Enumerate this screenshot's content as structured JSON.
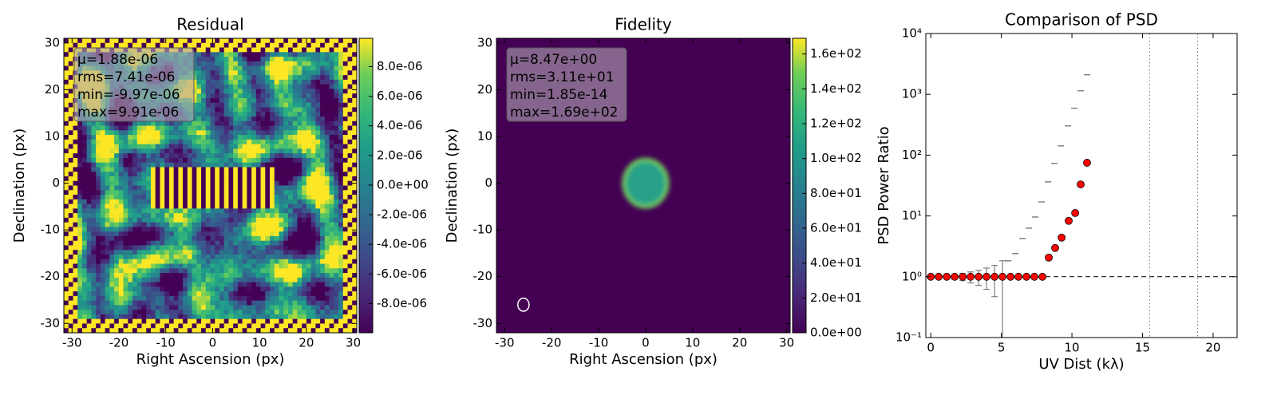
{
  "chart_data": [
    {
      "type": "heatmap",
      "title": "Residual",
      "xlabel": "Right Ascension (px)",
      "ylabel": "Declination (px)",
      "xlim": [
        -31.75,
        30.75
      ],
      "ylim": [
        -32,
        31
      ],
      "xticks": [
        -30,
        -20,
        -10,
        0,
        10,
        20,
        30
      ],
      "yticks": [
        -30,
        -20,
        -10,
        0,
        10,
        20,
        30
      ],
      "clim": [
        -9.97e-06,
        9.91e-06
      ],
      "cticks": [
        {
          "value": -8e-06,
          "label": "-8.0e-06"
        },
        {
          "value": -6e-06,
          "label": "-6.0e-06"
        },
        {
          "value": -4e-06,
          "label": "-4.0e-06"
        },
        {
          "value": -2e-06,
          "label": "-2.0e-06"
        },
        {
          "value": 0,
          "label": "0.0e+00"
        },
        {
          "value": 2e-06,
          "label": "2.0e-06"
        },
        {
          "value": 4e-06,
          "label": "4.0e-06"
        },
        {
          "value": 6e-06,
          "label": "6.0e-06"
        },
        {
          "value": 8e-06,
          "label": "8.0e-06"
        }
      ],
      "stats": [
        "μ=1.88e-06",
        "rms=7.41e-06",
        "min=-9.97e-06",
        "max=9.91e-06"
      ]
    },
    {
      "type": "heatmap",
      "title": "Fidelity",
      "xlabel": "Right Ascension (px)",
      "ylabel": "Declination (px)",
      "xlim": [
        -31.75,
        30.75
      ],
      "ylim": [
        -32,
        31
      ],
      "xticks": [
        -30,
        -20,
        -10,
        0,
        10,
        20,
        30
      ],
      "yticks": [
        -30,
        -20,
        -10,
        0,
        10,
        20,
        30
      ],
      "clim": [
        0,
        169
      ],
      "cticks": [
        {
          "value": 0,
          "label": "0.0e+00"
        },
        {
          "value": 20,
          "label": "2.0e+01"
        },
        {
          "value": 40,
          "label": "4.0e+01"
        },
        {
          "value": 60,
          "label": "6.0e+01"
        },
        {
          "value": 80,
          "label": "8.0e+01"
        },
        {
          "value": 100,
          "label": "1.0e+02"
        },
        {
          "value": 120,
          "label": "1.2e+02"
        },
        {
          "value": 140,
          "label": "1.4e+02"
        },
        {
          "value": 160,
          "label": "1.6e+02"
        }
      ],
      "stats": [
        "μ=8.47e+00",
        "rms=3.11e+01",
        "min=1.85e-14",
        "max=1.69e+02"
      ]
    },
    {
      "type": "scatter",
      "title": "Comparison of PSD",
      "xlabel": "UV Dist (kλ)",
      "ylabel": "PSD Power Ratio",
      "log_y": true,
      "xlim": [
        -0.35,
        21.7
      ],
      "ylim": [
        0.1,
        10000
      ],
      "xticks": [
        0,
        5,
        10,
        15,
        20
      ],
      "yticks": [
        {
          "value": 0.1,
          "label": "10⁻¹"
        },
        {
          "value": 1,
          "label": "10⁰"
        },
        {
          "value": 10,
          "label": "10¹"
        },
        {
          "value": 100,
          "label": "10²"
        },
        {
          "value": 1000,
          "label": "10³"
        },
        {
          "value": 10000,
          "label": "10⁴"
        }
      ],
      "hline": 1,
      "vlines": [
        15.5,
        18.9
      ],
      "series": [
        {
          "color": "#808080",
          "marker": "dash",
          "x": [
            5.48,
            5.99,
            6.5,
            6.95,
            7.4,
            7.85,
            8.31,
            8.76,
            9.21,
            9.72,
            10.17,
            10.62,
            11.07
          ],
          "values": [
            1.83,
            2.4,
            4.26,
            6.3,
            9.6,
            17,
            36.4,
            73,
            142,
            303,
            590,
            1145,
            2100
          ]
        },
        {
          "color": "#ff0000",
          "marker": "circle",
          "x": [
            0,
            0.56,
            1.13,
            1.69,
            2.26,
            2.82,
            3.39,
            3.95,
            4.52,
            5.08,
            5.65,
            6.21,
            6.78,
            7.34,
            7.91,
            8.36,
            8.81,
            9.27,
            9.77,
            10.23,
            10.62,
            11.07
          ],
          "values": [
            1,
            1,
            1,
            1,
            1,
            1,
            1,
            1,
            1,
            1,
            1,
            1,
            1,
            1,
            1,
            2.07,
            2.97,
            4.4,
            8.3,
            11.2,
            33,
            75
          ],
          "err_low": [
            null,
            null,
            null,
            0.91,
            0.86,
            0.79,
            0.72,
            0.62,
            0.47,
            0.05,
            null,
            null,
            null,
            null,
            null,
            null,
            null,
            null,
            null,
            null,
            null,
            null
          ],
          "err_high": [
            null,
            null,
            null,
            1.06,
            1.13,
            1.2,
            1.27,
            1.39,
            1.53,
            1.83,
            null,
            null,
            null,
            null,
            null,
            null,
            null,
            null,
            null,
            null,
            null,
            null
          ]
        }
      ]
    }
  ]
}
